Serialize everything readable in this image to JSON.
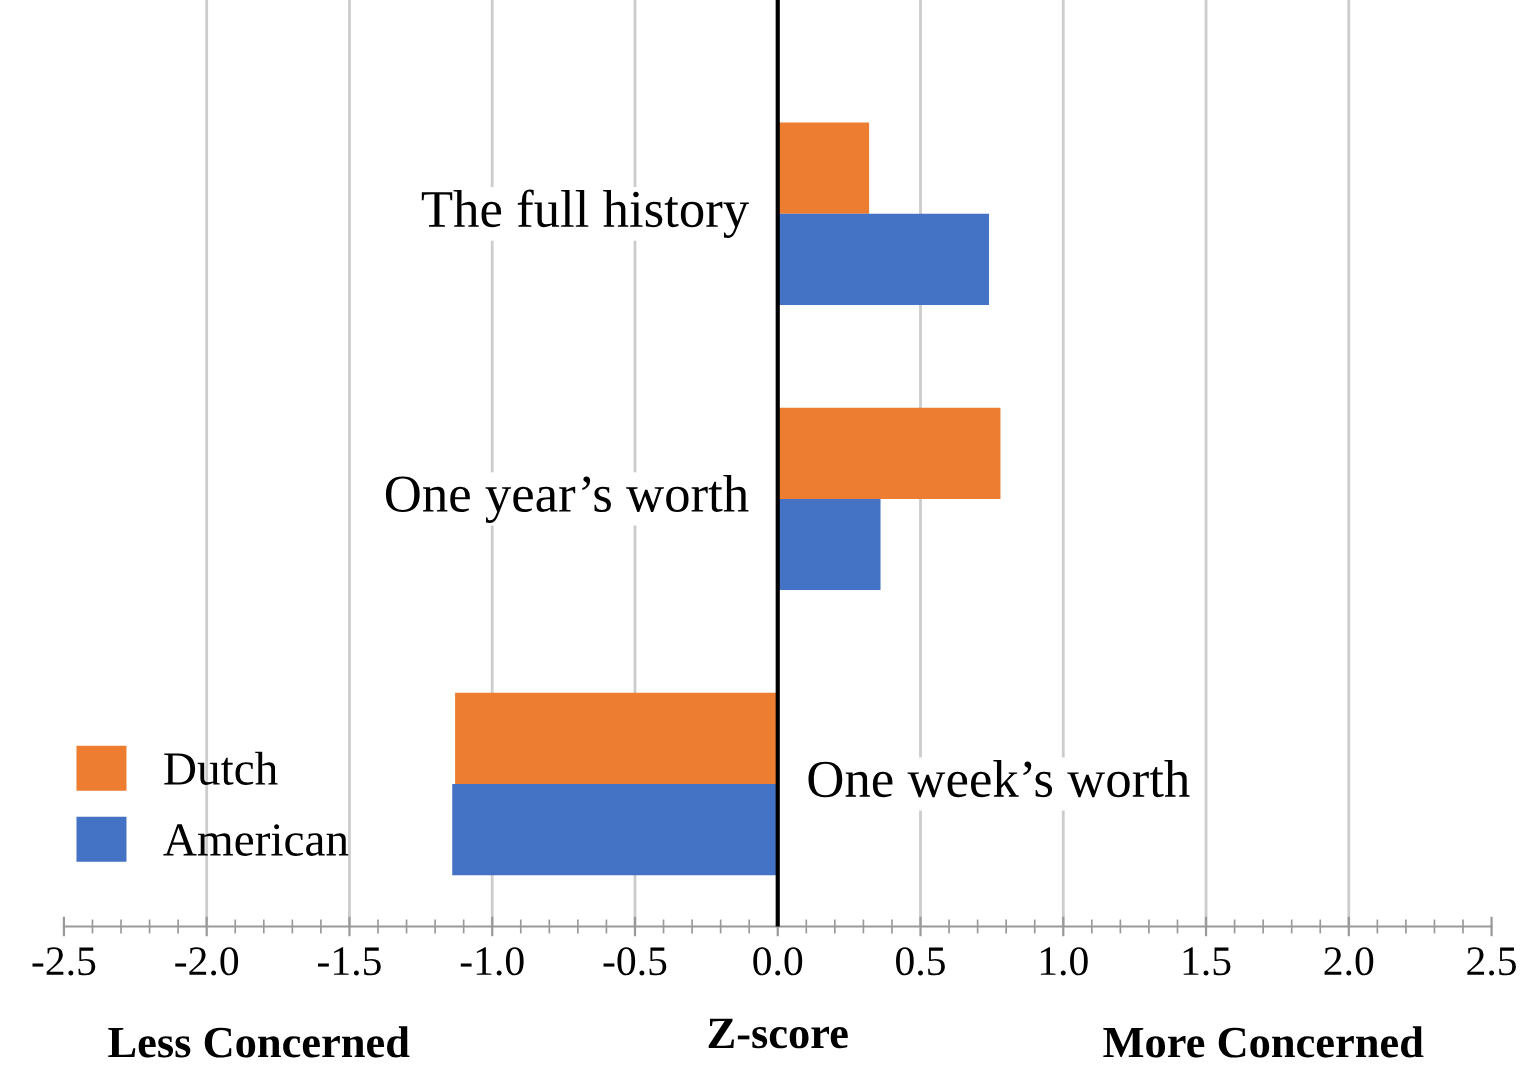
{
  "chart_data": {
    "type": "bar",
    "orientation": "horizontal",
    "xlabel": "Z-score",
    "categories": [
      "The full history",
      "One year’s worth",
      "One week’s worth"
    ],
    "series": [
      {
        "name": "Dutch",
        "color": "#ed7d31",
        "values": [
          0.32,
          0.78,
          -1.13
        ]
      },
      {
        "name": "American",
        "color": "#4472c4",
        "values": [
          0.74,
          0.36,
          -1.14
        ]
      }
    ],
    "xlim": [
      -2.5,
      2.5
    ],
    "xticks": [
      {
        "value": -2.5,
        "label": "-2.5"
      },
      {
        "value": -2.0,
        "label": "-2.0"
      },
      {
        "value": -1.5,
        "label": "-1.5"
      },
      {
        "value": -1.0,
        "label": "-1.0"
      },
      {
        "value": -0.5,
        "label": "-0.5"
      },
      {
        "value": 0.0,
        "label": "0.0"
      },
      {
        "value": 0.5,
        "label": "0.5"
      },
      {
        "value": 1.0,
        "label": "1.0"
      },
      {
        "value": 1.5,
        "label": "1.5"
      },
      {
        "value": 2.0,
        "label": "2.0"
      },
      {
        "value": 2.5,
        "label": "2.5"
      }
    ],
    "grid": "x",
    "legend": "bottom left",
    "annotations": [
      "Less Concerned",
      "More Concerned"
    ]
  }
}
